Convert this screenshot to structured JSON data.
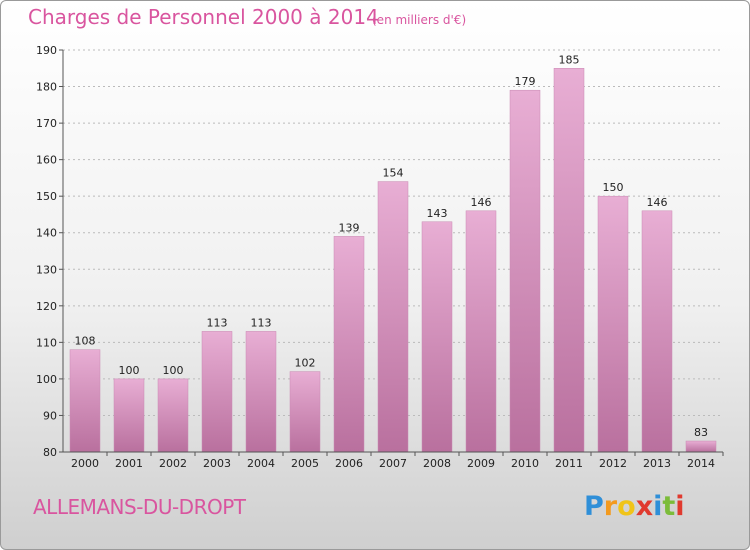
{
  "header": {
    "title": "Charges de Personnel 2000 à 2014",
    "subtitle": "(en milliers d'€)"
  },
  "footer": {
    "commune": "ALLEMANS-DU-DROPT",
    "logo_letters": [
      "P",
      "r",
      "o",
      "x",
      "i",
      "t",
      "i"
    ],
    "logo_colors": [
      "#2f8fd8",
      "#f39a1e",
      "#f0c419",
      "#e03a2f",
      "#2f8fd8",
      "#7cbc3a",
      "#e03a2f"
    ]
  },
  "colors": {
    "bar_top": "#e8aed4",
    "bar_bottom": "#b9709e",
    "axis": "#555555",
    "grid": "#bbbbbb"
  },
  "chart_data": {
    "type": "bar",
    "categories": [
      "2000",
      "2001",
      "2002",
      "2003",
      "2004",
      "2005",
      "2006",
      "2007",
      "2008",
      "2009",
      "2010",
      "2011",
      "2012",
      "2013",
      "2014"
    ],
    "values": [
      108,
      100,
      100,
      113,
      113,
      102,
      139,
      154,
      143,
      146,
      179,
      185,
      150,
      146,
      83
    ],
    "yticks": [
      80,
      90,
      100,
      110,
      120,
      130,
      140,
      150,
      160,
      170,
      180,
      190
    ],
    "ylim": [
      80,
      190
    ],
    "title": "Charges de Personnel 2000 à 2014",
    "subtitle": "(en milliers d'€)",
    "xlabel": "",
    "ylabel": "",
    "grid": true
  }
}
